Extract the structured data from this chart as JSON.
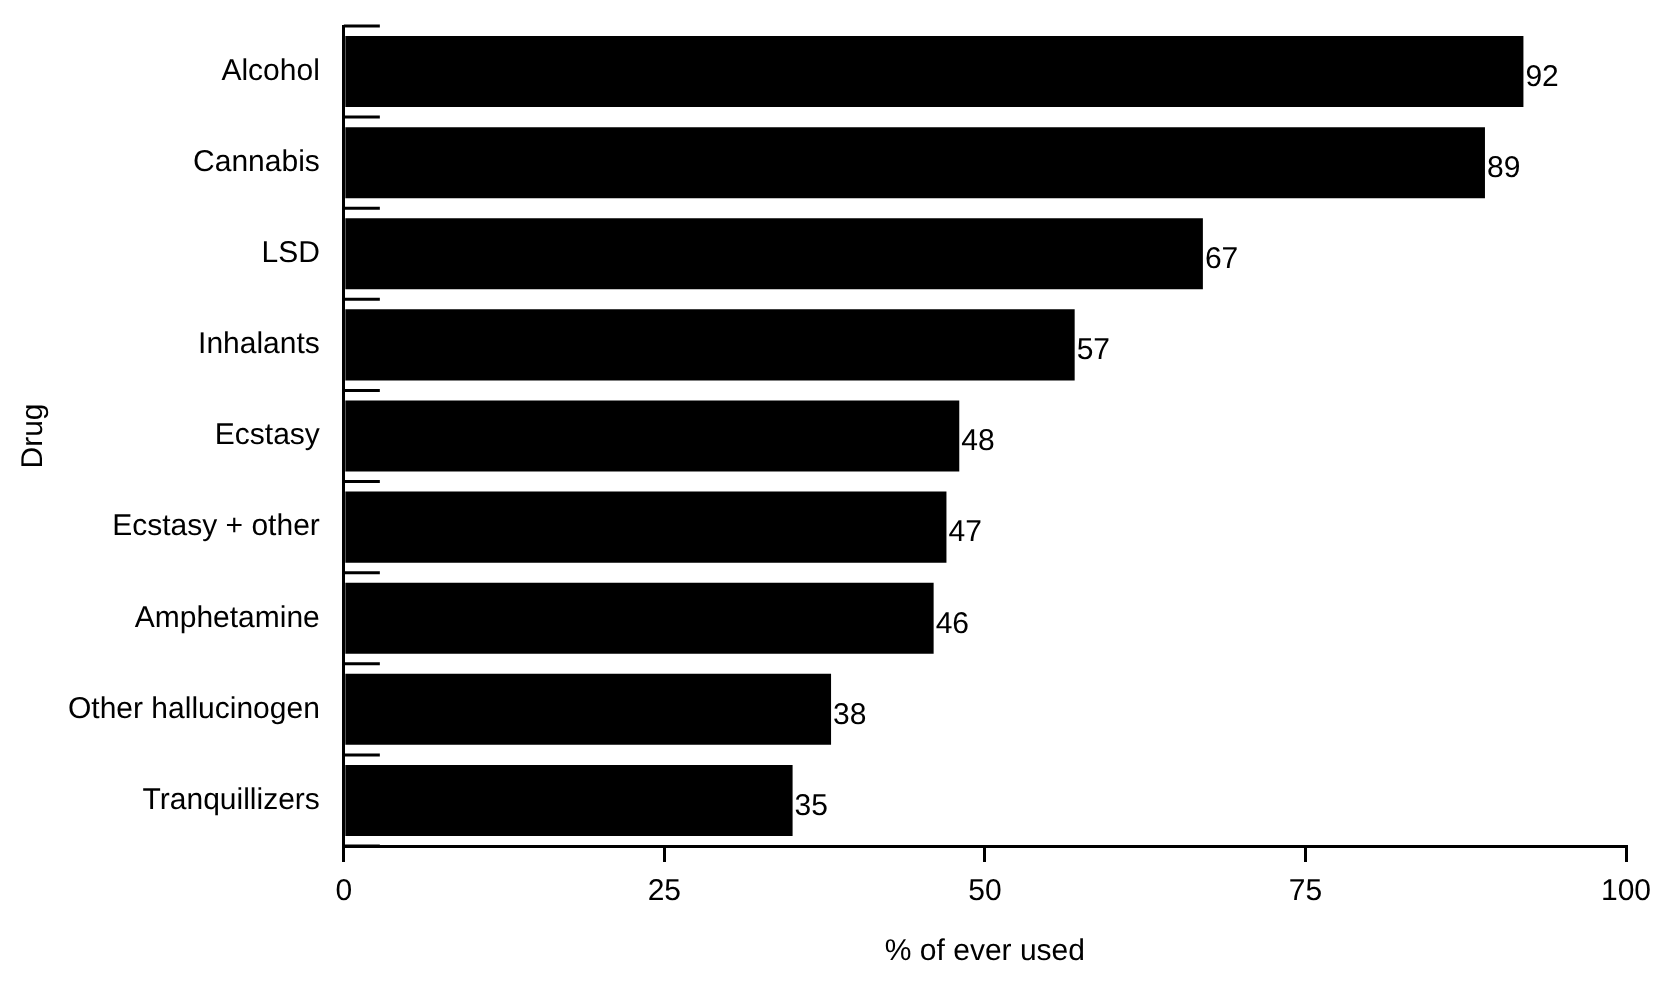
{
  "chart_data": {
    "type": "bar",
    "orientation": "horizontal",
    "xlabel": "% of ever used",
    "ylabel": "Drug",
    "categories": [
      "Alcohol",
      "Cannabis",
      "LSD",
      "Inhalants",
      "Ecstasy",
      "Ecstasy + other",
      "Amphetamine",
      "Other hallucinogen",
      "Tranquillizers"
    ],
    "values": [
      92,
      89,
      67,
      57,
      48,
      47,
      46,
      38,
      35
    ],
    "color": "#000000",
    "xlim": [
      0,
      100
    ],
    "xticks": [
      0,
      25,
      50,
      75,
      100
    ],
    "data_labels": true
  }
}
